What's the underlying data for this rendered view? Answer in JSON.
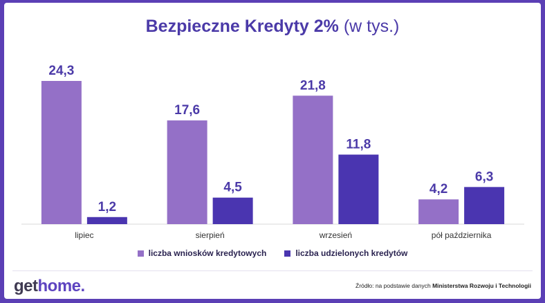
{
  "title": {
    "bold": "Bezpieczne Kredyty 2%",
    "light": "(w tys.)"
  },
  "colors": {
    "series1": "#9470c7",
    "series2": "#4a35b0",
    "value_label": "#4b3aa8",
    "tick_label": "#333333"
  },
  "chart_data": {
    "type": "bar",
    "title": "Bezpieczne Kredyty 2% (w tys.)",
    "categories": [
      "lipiec",
      "sierpień",
      "wrzesień",
      "pół października"
    ],
    "series": [
      {
        "name": "liczba wniosków kredytowych",
        "values": [
          24.3,
          17.6,
          21.8,
          4.2
        ],
        "labels": [
          "24,3",
          "17,6",
          "21,8",
          "4,2"
        ]
      },
      {
        "name": "liczba udzielonych kredytów",
        "values": [
          1.2,
          4.5,
          11.8,
          6.3
        ],
        "labels": [
          "1,2",
          "4,5",
          "11,8",
          "6,3"
        ]
      }
    ],
    "ylim": [
      0,
      24.3
    ],
    "grid": false,
    "legend": "bottom"
  },
  "legend": [
    {
      "label": "liczba wniosków kredytowych"
    },
    {
      "label": "liczba udzielonych kredytów"
    }
  ],
  "logo": {
    "part1": "get",
    "part2": "home."
  },
  "source": {
    "prefix": "Źródło: na podstawie danych",
    "bold": "Ministerstwa Rozwoju i Technologii"
  }
}
